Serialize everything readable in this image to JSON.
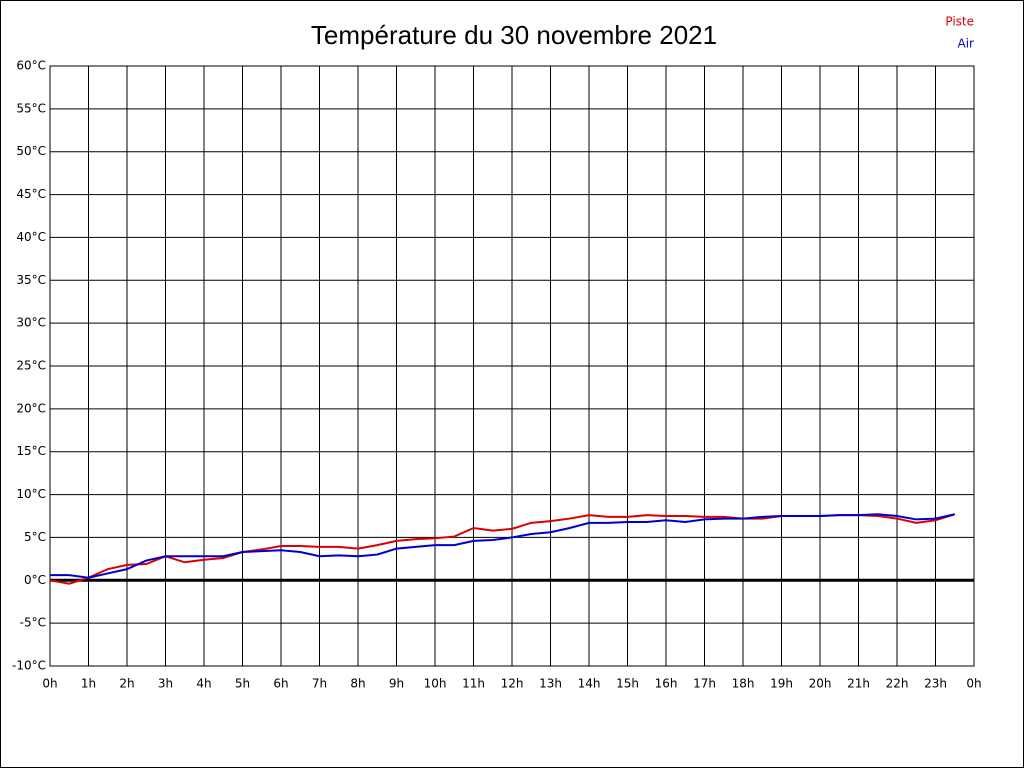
{
  "chart_data": {
    "type": "line",
    "title": "Température du 30 novembre 2021",
    "x": [
      0,
      0.5,
      1,
      1.5,
      2,
      2.5,
      3,
      3.5,
      4,
      4.5,
      5,
      5.5,
      6,
      6.5,
      7,
      7.5,
      8,
      8.5,
      9,
      9.5,
      10,
      10.5,
      11,
      11.5,
      12,
      12.5,
      13,
      13.5,
      14,
      14.5,
      15,
      15.5,
      16,
      16.5,
      17,
      17.5,
      18,
      18.5,
      19,
      19.5,
      20,
      20.5,
      21,
      21.5,
      22,
      22.5,
      23,
      23.5
    ],
    "series": [
      {
        "name": "Piste",
        "color": "#dd0000",
        "values": [
          0,
          -0.4,
          0.3,
          1.3,
          1.8,
          1.9,
          2.8,
          2.1,
          2.4,
          2.6,
          3.3,
          3.6,
          4.0,
          4.0,
          3.9,
          3.9,
          3.7,
          4.1,
          4.6,
          4.8,
          4.9,
          5.1,
          6.1,
          5.8,
          6.0,
          6.7,
          6.9,
          7.2,
          7.6,
          7.4,
          7.4,
          7.6,
          7.5,
          7.5,
          7.4,
          7.4,
          7.2,
          7.2,
          7.5,
          7.5,
          7.5,
          7.6,
          7.6,
          7.5,
          7.2,
          6.7,
          7.0,
          7.7
        ]
      },
      {
        "name": "Air",
        "color": "#0000cc",
        "values": [
          0.6,
          0.6,
          0.3,
          0.8,
          1.3,
          2.3,
          2.8,
          2.8,
          2.8,
          2.8,
          3.3,
          3.4,
          3.5,
          3.3,
          2.8,
          2.9,
          2.8,
          3.0,
          3.7,
          3.9,
          4.1,
          4.1,
          4.6,
          4.7,
          5.0,
          5.4,
          5.6,
          6.1,
          6.7,
          6.7,
          6.8,
          6.8,
          7.0,
          6.8,
          7.1,
          7.2,
          7.2,
          7.4,
          7.5,
          7.5,
          7.5,
          7.6,
          7.6,
          7.7,
          7.5,
          7.1,
          7.2,
          7.7
        ]
      }
    ],
    "xlim": [
      0,
      24
    ],
    "xticks": [
      {
        "value": 0,
        "label": "0h"
      },
      {
        "value": 1,
        "label": "1h"
      },
      {
        "value": 2,
        "label": "2h"
      },
      {
        "value": 3,
        "label": "3h"
      },
      {
        "value": 4,
        "label": "4h"
      },
      {
        "value": 5,
        "label": "5h"
      },
      {
        "value": 6,
        "label": "6h"
      },
      {
        "value": 7,
        "label": "7h"
      },
      {
        "value": 8,
        "label": "8h"
      },
      {
        "value": 9,
        "label": "9h"
      },
      {
        "value": 10,
        "label": "10h"
      },
      {
        "value": 11,
        "label": "11h"
      },
      {
        "value": 12,
        "label": "12h"
      },
      {
        "value": 13,
        "label": "13h"
      },
      {
        "value": 14,
        "label": "14h"
      },
      {
        "value": 15,
        "label": "15h"
      },
      {
        "value": 16,
        "label": "16h"
      },
      {
        "value": 17,
        "label": "17h"
      },
      {
        "value": 18,
        "label": "18h"
      },
      {
        "value": 19,
        "label": "19h"
      },
      {
        "value": 20,
        "label": "20h"
      },
      {
        "value": 21,
        "label": "21h"
      },
      {
        "value": 22,
        "label": "22h"
      },
      {
        "value": 23,
        "label": "23h"
      },
      {
        "value": 24,
        "label": "0h"
      }
    ],
    "ylim": [
      -10,
      60
    ],
    "yticks": [
      {
        "value": -10,
        "label": "-10°C"
      },
      {
        "value": -5,
        "label": "-5°C"
      },
      {
        "value": 0,
        "label": "0°C"
      },
      {
        "value": 5,
        "label": "5°C"
      },
      {
        "value": 10,
        "label": "10°C"
      },
      {
        "value": 15,
        "label": "15°C"
      },
      {
        "value": 20,
        "label": "20°C"
      },
      {
        "value": 25,
        "label": "25°C"
      },
      {
        "value": 30,
        "label": "30°C"
      },
      {
        "value": 35,
        "label": "35°C"
      },
      {
        "value": 40,
        "label": "40°C"
      },
      {
        "value": 45,
        "label": "45°C"
      },
      {
        "value": 50,
        "label": "50°C"
      },
      {
        "value": 55,
        "label": "55°C"
      },
      {
        "value": 60,
        "label": "60°C"
      }
    ],
    "grid": true,
    "legend": "top-right"
  }
}
